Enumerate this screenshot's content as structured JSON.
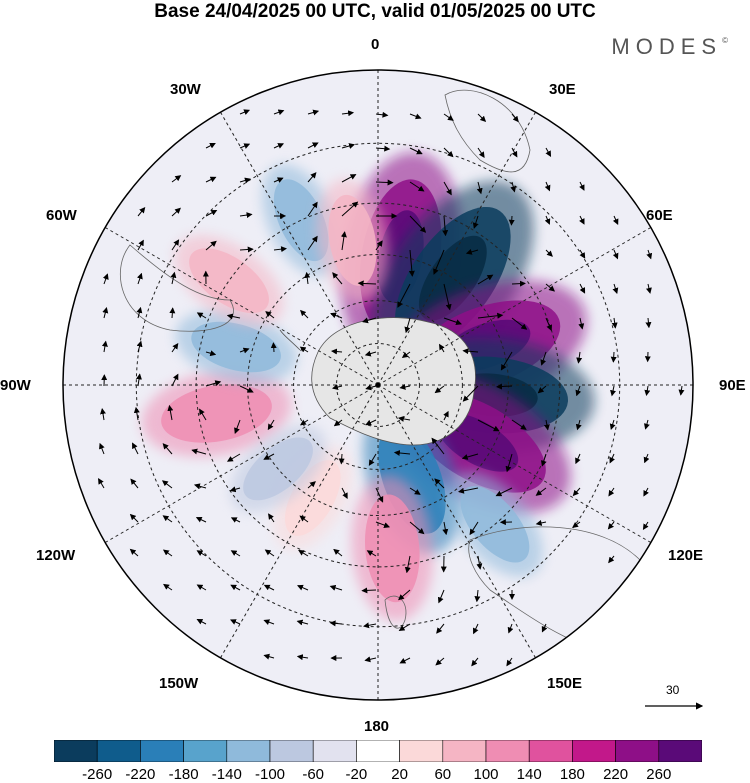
{
  "title": "Base 24/04/2025 00 UTC, valid 01/05/2025 00 UTC",
  "brand": "MODES",
  "brand_mark": "©",
  "longitude_labels": {
    "top": "0",
    "upper_right": "30E",
    "right_upper": "60E",
    "right": "90E",
    "right_lower": "120E",
    "lower_right": "150E",
    "bottom": "180",
    "lower_left": "150W",
    "left_lower": "120W",
    "left": "90W",
    "left_upper": "60W",
    "upper_left": "30W"
  },
  "reference_vector": {
    "label": "30"
  },
  "colorbar": {
    "colors": [
      "#0b3c5d",
      "#0f5c8c",
      "#2a7fb8",
      "#58a3cc",
      "#8fbadb",
      "#bcc8e0",
      "#e2e2ef",
      "#ffffff",
      "#fbd9d9",
      "#f5b5c4",
      "#ef8db3",
      "#e0529e",
      "#c2188a",
      "#8e0f87",
      "#5a0a78"
    ],
    "ticks": [
      "-260",
      "-220",
      "-180",
      "-140",
      "-100",
      "-60",
      "-20",
      "20",
      "60",
      "100",
      "140",
      "180",
      "220",
      "260"
    ]
  },
  "map_data": {
    "projection": "south-polar-stereographic",
    "field": "geopotential height anomaly",
    "anomalies": [
      {
        "lon": 10,
        "lat": -45,
        "value": 240,
        "color": "#8e0f87"
      },
      {
        "lon": 35,
        "lat": -45,
        "value": -260,
        "color": "#0b3c5d"
      },
      {
        "lon": 70,
        "lat": -50,
        "value": 240,
        "color": "#8e0f87"
      },
      {
        "lon": 95,
        "lat": -50,
        "value": -230,
        "color": "#0b3c5d"
      },
      {
        "lon": 120,
        "lat": -50,
        "value": 230,
        "color": "#8e0f87"
      },
      {
        "lon": 160,
        "lat": -55,
        "value": -140,
        "color": "#2a7fb8"
      },
      {
        "lon": 175,
        "lat": -35,
        "value": 120,
        "color": "#ef8db3"
      },
      {
        "lon": 140,
        "lat": -30,
        "value": -80,
        "color": "#8fbadb"
      },
      {
        "lon": -100,
        "lat": -35,
        "value": 130,
        "color": "#ef8db3"
      },
      {
        "lon": -75,
        "lat": -40,
        "value": -80,
        "color": "#8fbadb"
      },
      {
        "lon": -55,
        "lat": -30,
        "value": 80,
        "color": "#f5b5c4"
      },
      {
        "lon": -25,
        "lat": -30,
        "value": -70,
        "color": "#8fbadb"
      },
      {
        "lon": -10,
        "lat": -40,
        "value": 80,
        "color": "#f5b5c4"
      },
      {
        "lon": -150,
        "lat": -45,
        "value": 60,
        "color": "#fbd9d9"
      },
      {
        "lon": -130,
        "lat": -45,
        "value": -60,
        "color": "#bcc8e0"
      }
    ]
  }
}
